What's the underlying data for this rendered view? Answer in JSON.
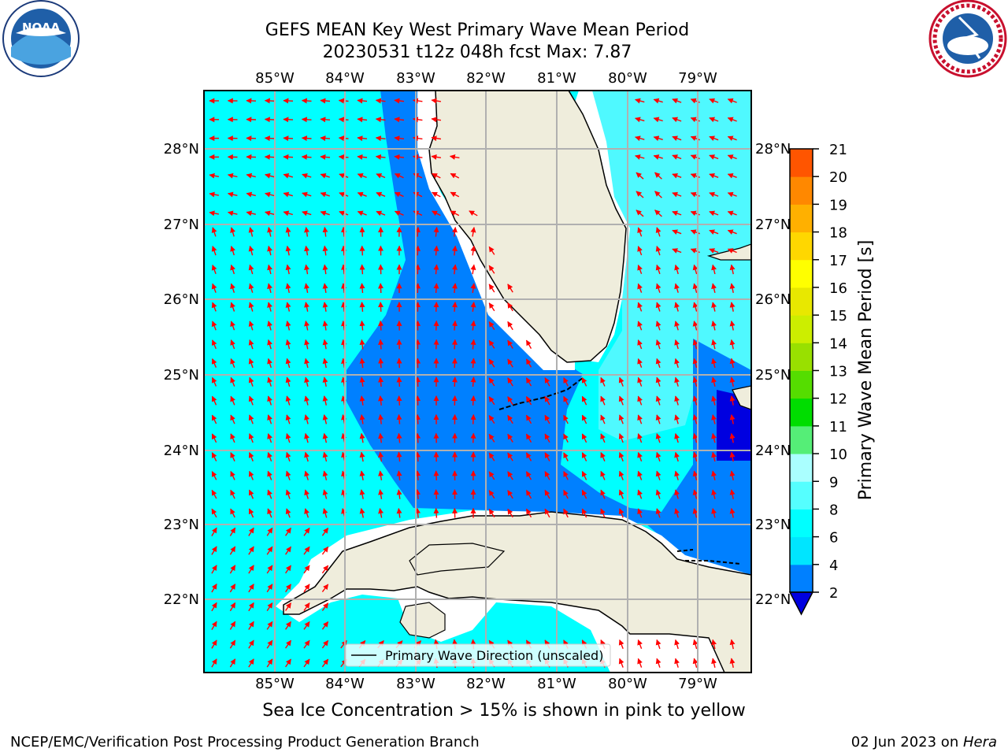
{
  "title": {
    "line1": "GEFS MEAN Key West Primary Wave Mean Period",
    "line2": "20230531 t12z 048h fcst    Max: 7.87"
  },
  "map": {
    "lon_ticks": [
      "85°W",
      "84°W",
      "83°W",
      "82°W",
      "81°W",
      "80°W",
      "79°W"
    ],
    "lat_ticks": [
      "28°N",
      "27°N",
      "26°N",
      "25°N",
      "24°N",
      "23°N",
      "22°N"
    ],
    "legend": "Primary Wave Direction (unscaled)",
    "colors": {
      "land": "#efeddc",
      "ocean_4_6": "#00ffff",
      "ocean_6_8": "#4ff9ff",
      "ocean_2_4": "#0080ff",
      "ocean_lt2": "#0000e0",
      "arrow": "#ff0000",
      "grid": "#b0b0b0"
    }
  },
  "colorbar": {
    "label": "Primary Wave Mean Period [s]",
    "ticks": [
      "2",
      "4",
      "6",
      "8",
      "9",
      "10",
      "11",
      "12",
      "13",
      "14",
      "15",
      "16",
      "17",
      "18",
      "19",
      "20",
      "21"
    ],
    "colors": [
      "#0080ff",
      "#00e5ff",
      "#00ffff",
      "#55ffff",
      "#aaffff",
      "#55ee77",
      "#00dd00",
      "#55dd00",
      "#99e000",
      "#ccee00",
      "#e8e800",
      "#ffff00",
      "#ffd700",
      "#ffb000",
      "#ff8800",
      "#ff5500",
      "#ff2200",
      "#ff0000"
    ],
    "extend_color": "#0000e0"
  },
  "caption": "Sea Ice Concentration > 15% is shown in pink to yellow",
  "footer": {
    "left": "NCEP/EMC/Verification Post Processing Product Generation Branch",
    "right_date": "02 Jun 2023 on ",
    "right_host": "Hera"
  },
  "logos": {
    "noaa": "NOAA",
    "nws": "NATIONAL WEATHER SERVICE"
  }
}
